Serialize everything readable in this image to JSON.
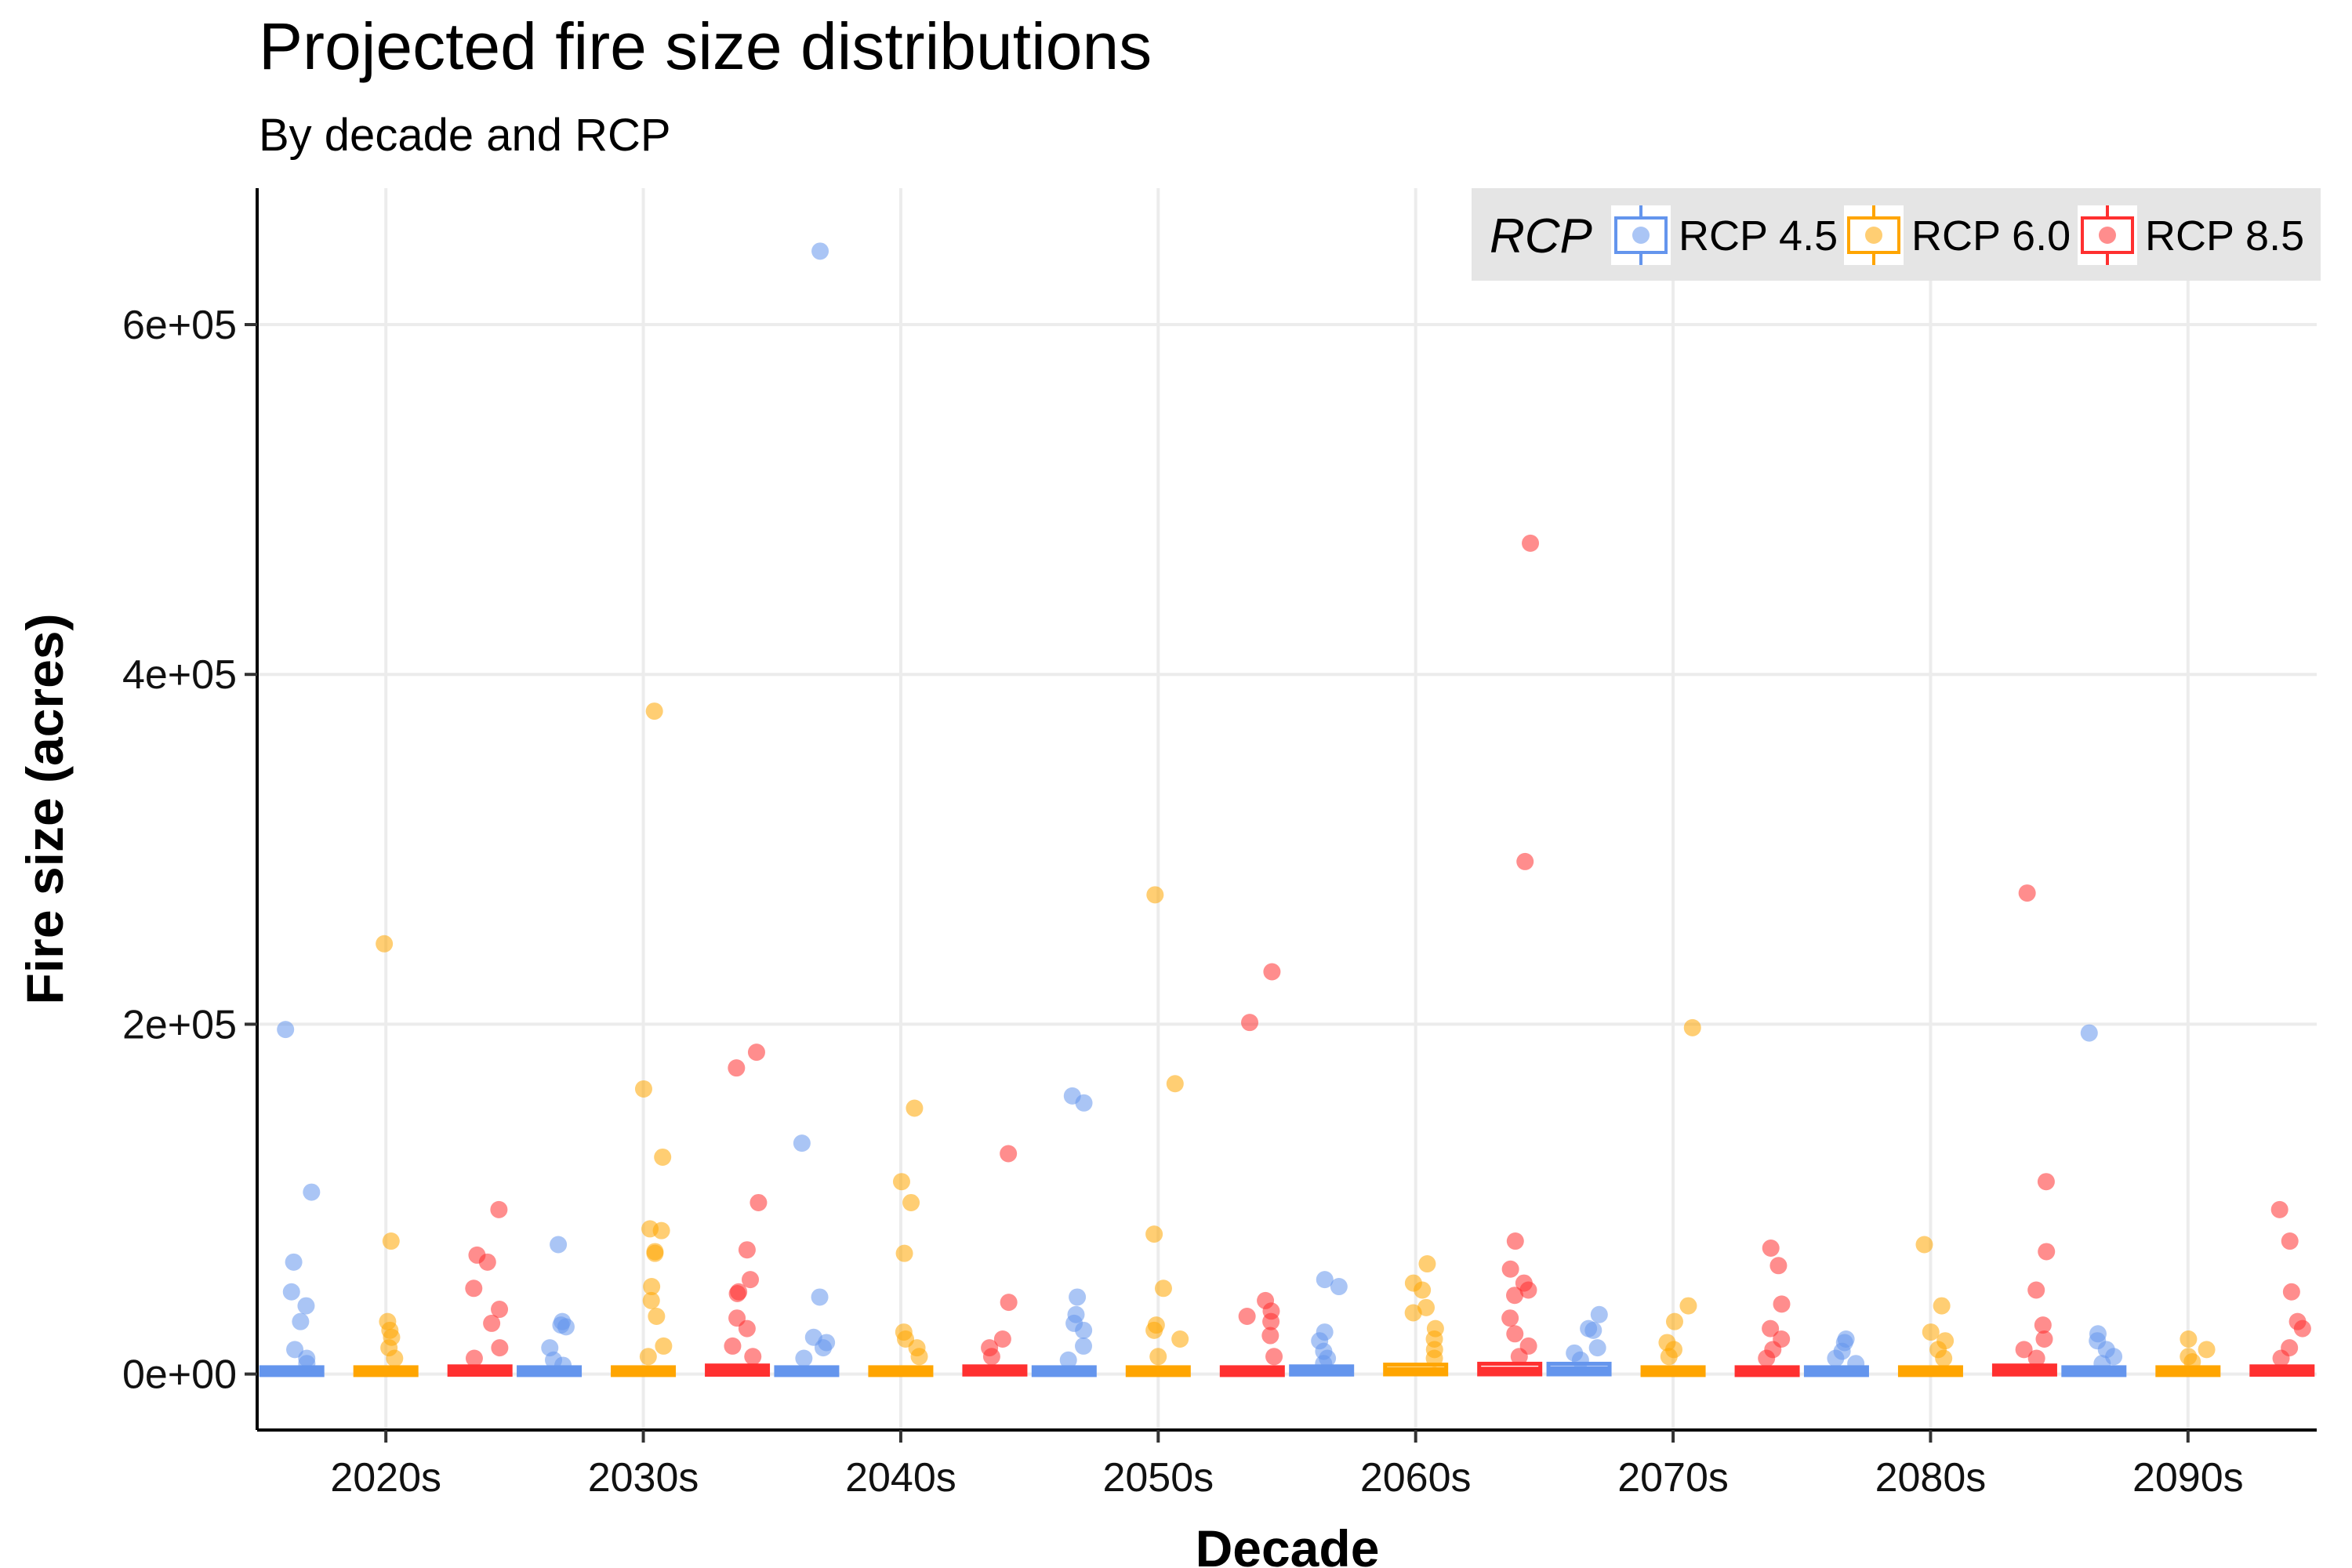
{
  "chart_data": {
    "type": "box",
    "title": "Projected fire size distributions",
    "subtitle": "By decade and RCP",
    "xlabel": "Decade",
    "ylabel": "Fire size (acres)",
    "categories": [
      "2020s",
      "2030s",
      "2040s",
      "2050s",
      "2060s",
      "2070s",
      "2080s",
      "2090s"
    ],
    "y_ticks": [
      0,
      200000,
      400000,
      600000
    ],
    "y_tick_labels": [
      "0e+00",
      "2e+05",
      "4e+05",
      "6e+05"
    ],
    "ylim": [
      -32000,
      678000
    ],
    "grid": true,
    "legend": {
      "title": "RCP",
      "position": "top-right"
    },
    "series": [
      {
        "name": "RCP 4.5",
        "color": "#6495ED",
        "outliers": [
          [
            197000,
            104000,
            64000,
            47000,
            39000,
            30000,
            14000,
            9000,
            6000
          ],
          [
            74000,
            30000,
            28000,
            27000,
            15000,
            8000,
            5000
          ],
          [
            642000,
            132000,
            44000,
            21000,
            18000,
            15000,
            9000
          ],
          [
            159000,
            155000,
            44000,
            34000,
            29000,
            25000,
            16000,
            8000
          ],
          [
            54000,
            50000,
            24000,
            19000,
            13000,
            9000,
            6000
          ],
          [
            34000,
            26000,
            25000,
            15000,
            12000,
            8000
          ],
          [
            20000,
            18000,
            13000,
            9000,
            6000
          ],
          [
            195000,
            23000,
            19000,
            14000,
            10000,
            6000
          ]
        ],
        "q1": [
          500,
          500,
          500,
          500,
          600,
          700,
          500,
          500
        ],
        "median": [
          1500,
          1500,
          1500,
          1500,
          2000,
          2500,
          1500,
          1500
        ],
        "q3": [
          3000,
          3000,
          3000,
          3000,
          3500,
          5000,
          3000,
          3000
        ]
      },
      {
        "name": "RCP 6.0",
        "color": "#FFA500",
        "outliers": [
          [
            246000,
            76000,
            30000,
            25000,
            21000,
            15000,
            9000
          ],
          [
            379000,
            163000,
            124000,
            83000,
            82000,
            70000,
            69000,
            50000,
            42000,
            33000,
            16000,
            10000
          ],
          [
            152000,
            110000,
            98000,
            69000,
            24000,
            20000,
            15000,
            10000
          ],
          [
            274000,
            166000,
            80000,
            49000,
            28000,
            25000,
            20000,
            10000
          ],
          [
            63000,
            52000,
            48000,
            38000,
            35000,
            26000,
            20000,
            14000,
            9000
          ],
          [
            198000,
            39000,
            30000,
            18000,
            14000,
            10000
          ],
          [
            74000,
            39000,
            24000,
            19000,
            14000,
            9000
          ],
          [
            20000,
            14000,
            10000,
            7000
          ]
        ],
        "q1": [
          500,
          500,
          500,
          500,
          700,
          500,
          500,
          500
        ],
        "median": [
          1500,
          1500,
          1500,
          1500,
          2000,
          1500,
          1500,
          1500
        ],
        "q3": [
          3000,
          3000,
          3000,
          3000,
          4500,
          3000,
          3000,
          3000
        ]
      },
      {
        "name": "RCP 8.5",
        "color": "#FF3030",
        "outliers": [
          [
            94000,
            68000,
            64000,
            49000,
            37000,
            29000,
            15000,
            9000
          ],
          [
            184000,
            175000,
            98000,
            71000,
            54000,
            47000,
            46000,
            32000,
            26000,
            16000,
            10000
          ],
          [
            126000,
            41000,
            20000,
            15000,
            10000
          ],
          [
            230000,
            201000,
            42000,
            36000,
            33000,
            30000,
            22000,
            10000
          ],
          [
            475000,
            293000,
            76000,
            60000,
            52000,
            48000,
            45000,
            32000,
            23000,
            16000,
            10000
          ],
          [
            72000,
            62000,
            40000,
            26000,
            20000,
            14000,
            9000
          ],
          [
            275000,
            110000,
            70000,
            48000,
            28000,
            20000,
            14000,
            9000
          ],
          [
            94000,
            76000,
            47000,
            30000,
            26000,
            15000,
            9000
          ]
        ],
        "q1": [
          500,
          500,
          600,
          500,
          700,
          500,
          600,
          500
        ],
        "median": [
          1500,
          2000,
          1800,
          1500,
          2200,
          1500,
          2000,
          1800
        ],
        "q3": [
          3500,
          4000,
          3500,
          3000,
          5000,
          3000,
          4000,
          3500
        ]
      }
    ]
  }
}
